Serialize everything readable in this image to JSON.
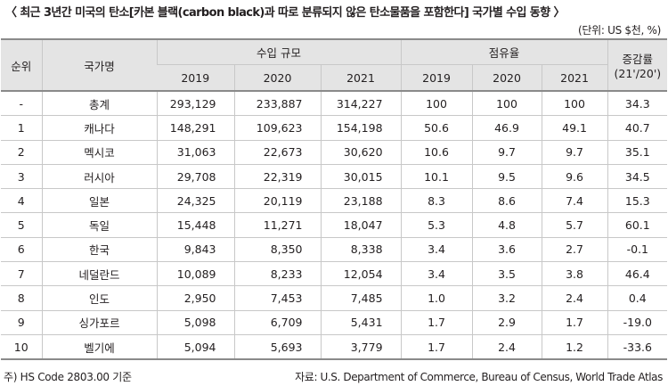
{
  "title": "〈 최근 3년간 미국의 탄소[카본 블랙(carbon black)과 따로 분류되지 않은 탄소물품을 포함한다] 국가별 수입 동향 〉",
  "unit": "(단위: US $천, %)",
  "headers": {
    "rank": "순위",
    "country": "국가명",
    "import_scale": "수입 규모",
    "share": "점유율",
    "change_line1": "증감률",
    "change_line2": "(21'/20')",
    "years": [
      "2019",
      "2020",
      "2021"
    ]
  },
  "rows": [
    {
      "rank": "-",
      "country": "총계",
      "v2019": "293,129",
      "v2020": "233,887",
      "v2021": "314,227",
      "s2019": "100",
      "s2020": "100",
      "s2021": "100",
      "change": "34.3"
    },
    {
      "rank": "1",
      "country": "캐나다",
      "v2019": "148,291",
      "v2020": "109,623",
      "v2021": "154,198",
      "s2019": "50.6",
      "s2020": "46.9",
      "s2021": "49.1",
      "change": "40.7"
    },
    {
      "rank": "2",
      "country": "멕시코",
      "v2019": "31,063",
      "v2020": "22,673",
      "v2021": "30,620",
      "s2019": "10.6",
      "s2020": "9.7",
      "s2021": "9.7",
      "change": "35.1"
    },
    {
      "rank": "3",
      "country": "러시아",
      "v2019": "29,708",
      "v2020": "22,319",
      "v2021": "30,015",
      "s2019": "10.1",
      "s2020": "9.5",
      "s2021": "9.6",
      "change": "34.5"
    },
    {
      "rank": "4",
      "country": "일본",
      "v2019": "24,325",
      "v2020": "20,119",
      "v2021": "23,188",
      "s2019": "8.3",
      "s2020": "8.6",
      "s2021": "7.4",
      "change": "15.3"
    },
    {
      "rank": "5",
      "country": "독일",
      "v2019": "15,448",
      "v2020": "11,271",
      "v2021": "18,047",
      "s2019": "5.3",
      "s2020": "4.8",
      "s2021": "5.7",
      "change": "60.1"
    },
    {
      "rank": "6",
      "country": "한국",
      "v2019": "9,843",
      "v2020": "8,350",
      "v2021": "8,338",
      "s2019": "3.4",
      "s2020": "3.6",
      "s2021": "2.7",
      "change": "-0.1"
    },
    {
      "rank": "7",
      "country": "네덜란드",
      "v2019": "10,089",
      "v2020": "8,233",
      "v2021": "12,054",
      "s2019": "3.4",
      "s2020": "3.5",
      "s2021": "3.8",
      "change": "46.4"
    },
    {
      "rank": "8",
      "country": "인도",
      "v2019": "2,950",
      "v2020": "7,453",
      "v2021": "7,485",
      "s2019": "1.0",
      "s2020": "3.2",
      "s2021": "2.4",
      "change": "0.4"
    },
    {
      "rank": "9",
      "country": "싱가포르",
      "v2019": "5,098",
      "v2020": "6,709",
      "v2021": "5,431",
      "s2019": "1.7",
      "s2020": "2.9",
      "s2021": "1.7",
      "change": "-19.0"
    },
    {
      "rank": "10",
      "country": "벨기에",
      "v2019": "5,094",
      "v2020": "5,693",
      "v2021": "3,779",
      "s2019": "1.7",
      "s2020": "2.4",
      "s2021": "1.2",
      "change": "-33.6"
    }
  ],
  "footnote": "주) HS Code 2803.00 기준",
  "source": "자료: U.S. Department of Commerce, Bureau of Census, World Trade Atlas"
}
